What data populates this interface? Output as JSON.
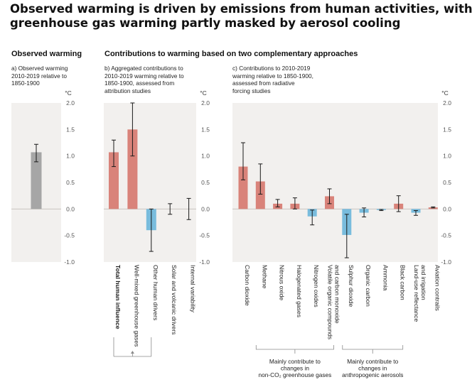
{
  "title": {
    "line1": "Observed warming is driven by emissions from human activities, with",
    "line2": "greenhouse gas warming partly masked by aerosol cooling"
  },
  "sections": {
    "observed": "Observed warming",
    "contributions": "Contributions to warming based on two complementary approaches"
  },
  "panels": {
    "a": [
      "a) Observed warming",
      "2010-2019 relative to",
      "1850-1900"
    ],
    "b": [
      "b) Aggregated contributions to",
      "2010-2019 warming relative to",
      "1850-1900, assessed from",
      "attribution studies"
    ],
    "c": [
      "c) Contributions to 2010-2019",
      "warming relative to 1850-1900,",
      "assessed from radiative",
      "forcing studies"
    ]
  },
  "axis_unit": "°C",
  "groups": {
    "total_bracket": "",
    "ghg_bracket": [
      "Mainly contribute to",
      "changes in",
      "non-CO₂ greenhouse gases"
    ],
    "aerosol_bracket": [
      "Mainly contribute to",
      "changes in",
      "anthropogenic aerosols"
    ]
  },
  "colors": {
    "observed": "#a6a6a6",
    "warming": "#d9837a",
    "cooling": "#79bcdd",
    "panel_bg": "#f2f0ee",
    "zero_line": "#c9c4c0",
    "error_bar": "#1a1a1a"
  },
  "chart_data": [
    {
      "type": "bar",
      "panel": "a",
      "categories": [
        ""
      ],
      "values": [
        1.07
      ],
      "error_low": [
        0.89
      ],
      "error_high": [
        1.22
      ],
      "ylim": [
        -1.0,
        2.0
      ],
      "yticks": [
        "2.0",
        "1.5",
        "1.0",
        "0.5",
        "0.0",
        "-0.5",
        "-1.0"
      ]
    },
    {
      "type": "bar",
      "panel": "b",
      "categories": [
        "Total human influence",
        "Well-mixed greenhouse gases",
        "Other human drivers",
        "Solar and volcanic drivers",
        "Internal variability"
      ],
      "values": [
        1.07,
        1.5,
        -0.4,
        0.0,
        0.0
      ],
      "error_low": [
        0.8,
        1.0,
        -0.8,
        -0.1,
        -0.2
      ],
      "error_high": [
        1.3,
        2.0,
        0.0,
        0.1,
        0.2
      ],
      "bold_categories": [
        0
      ],
      "ylim": [
        -1.0,
        2.0
      ],
      "yticks": [
        "2.0",
        "1.5",
        "1.0",
        "0.5",
        "0.0",
        "-0.5",
        "-1.0"
      ]
    },
    {
      "type": "bar",
      "panel": "c",
      "categories": [
        "Carbon dioxide",
        "Methane",
        "Nitrous oxide",
        "Halogenated gases",
        "Nitrogen oxides",
        "Volatile organic compounds and carbon monoxide",
        "Sulphur dioxide",
        "Organic carbon",
        "Ammonia",
        "Black carbon",
        "Land-use reflectance and irrigation",
        "Aviation contrails"
      ],
      "category_lines": [
        [
          "Carbon dioxide"
        ],
        [
          "Methane"
        ],
        [
          "Nitrous oxide"
        ],
        [
          "Halogenated gases"
        ],
        [
          "Nitrogen oxides"
        ],
        [
          "Volatile organic compounds",
          "and carbon monoxide"
        ],
        [
          "Sulphur dioxide"
        ],
        [
          "Organic carbon"
        ],
        [
          "Ammonia"
        ],
        [
          "Black carbon"
        ],
        [
          "Land-use reflectance",
          "and irrigation"
        ],
        [
          "Aviation contrails"
        ]
      ],
      "values": [
        0.8,
        0.52,
        0.1,
        0.1,
        -0.14,
        0.24,
        -0.49,
        -0.07,
        -0.02,
        0.1,
        -0.07,
        0.03
      ],
      "error_low": [
        0.55,
        0.28,
        0.04,
        0.0,
        -0.3,
        0.1,
        -0.92,
        -0.15,
        -0.03,
        -0.05,
        -0.12,
        0.02
      ],
      "error_high": [
        1.25,
        0.85,
        0.18,
        0.21,
        -0.02,
        0.38,
        -0.1,
        0.02,
        -0.01,
        0.25,
        -0.03,
        0.04
      ],
      "ylim": [
        -1.0,
        2.0
      ],
      "yticks": [
        "2.0",
        "1.5",
        "1.0",
        "0.5",
        "0.0",
        "-0.5",
        "-1.0"
      ]
    }
  ]
}
